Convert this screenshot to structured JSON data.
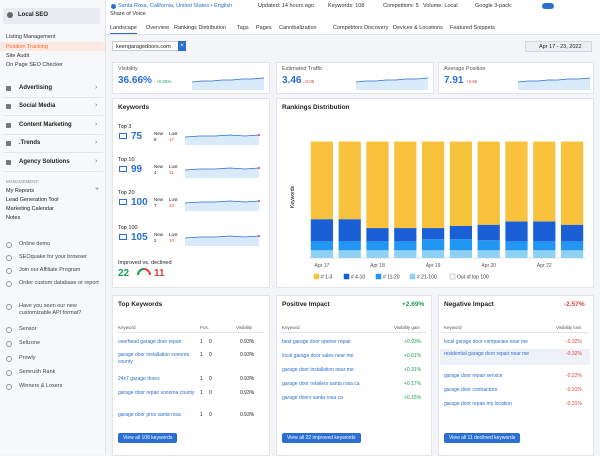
{
  "sidebar": {
    "section": "Local SEO",
    "items": [
      "Listing Management",
      "Position Tracking",
      "Site Audit",
      "On Page SEO Checker"
    ],
    "groups": [
      "Advertising",
      "Social Media",
      "Content Marketing",
      ".Trends",
      "Agency Solutions"
    ],
    "management_heading": "MANAGEMENT",
    "management": [
      "My Reports",
      "Lead Generation Tool",
      "Marketing Calendar",
      "Notes"
    ],
    "links": [
      "Online demo",
      "SEOquake for your browser",
      "Join our Affiliate Program",
      "Order custom database or report",
      "Have you seen our new customizable API format?",
      "Sensor",
      "Sellzone",
      "Prowly",
      "Semrush Rank",
      "Winners & Losers"
    ]
  },
  "topbar": {
    "location": "Santa Rosa, California, United States • English",
    "updated": "Updated: 14 hours ago",
    "keywords": "Keywords: 108",
    "competitors": "Competitors: 5",
    "volume": "Volume: Local",
    "pack": "Google 3-pack:",
    "share": "Share of Voice"
  },
  "tabs": [
    "Landscape",
    "Overview",
    "Rankings Distribution",
    "Tags",
    "Pages",
    "Cannibalization",
    "Competitors Discovery",
    "Devices & Locations",
    "Featured Snippets"
  ],
  "filter": "keengaragedoors.com",
  "date": "Apr 17 - 23, 2022",
  "metrics": [
    {
      "label": "Visibility",
      "value": "36.66%",
      "change": "+0.05%"
    },
    {
      "label": "Estimated Traffic",
      "value": "3.46",
      "change": "-0.08"
    },
    {
      "label": "Average Position",
      "value": "7.91",
      "change": "+2.56"
    }
  ],
  "keywords": {
    "title": "Keywords",
    "new_label": "New",
    "lost_label": "Lost",
    "rows": [
      {
        "label": "Top 3",
        "value": 75,
        "new": 8,
        "lost": 17
      },
      {
        "label": "Top 10",
        "value": 99,
        "new": 4,
        "lost": 11
      },
      {
        "label": "Top 20",
        "value": 100,
        "new": 7,
        "lost": 10
      },
      {
        "label": "Top 100",
        "value": 105,
        "new": 2,
        "lost": 10
      }
    ],
    "improved_label": "Improved vs. declined",
    "improved": 22,
    "declined": 11
  },
  "rankings": {
    "title": "Rankings Distribution",
    "chart_data": {
      "type": "bar",
      "stacked": true,
      "y_label": "Keywords",
      "categories": [
        "Apr 17",
        null,
        "Apr 18",
        null,
        "Apr 19",
        null,
        "Apr 20",
        null,
        "Apr 22",
        null
      ],
      "ylim": [
        0,
        110
      ],
      "series": [
        {
          "name": "# 1-3",
          "color": "#f9c23c",
          "values": [
            70,
            70,
            78,
            78,
            78,
            76,
            75,
            72,
            72,
            75
          ]
        },
        {
          "name": "# 4-10",
          "color": "#1a5fd6",
          "values": [
            20,
            20,
            12,
            12,
            10,
            12,
            14,
            18,
            18,
            15
          ]
        },
        {
          "name": "# 11-20",
          "color": "#2196f3",
          "values": [
            8,
            8,
            8,
            8,
            10,
            10,
            9,
            8,
            8,
            8
          ]
        },
        {
          "name": "# 21-100",
          "color": "#8fd0f5",
          "values": [
            7,
            7,
            7,
            7,
            7,
            7,
            7,
            7,
            7,
            7
          ]
        },
        {
          "name": "Out of top 100",
          "color": "#ffffff",
          "values": [
            0,
            0,
            0,
            0,
            0,
            0,
            0,
            0,
            0,
            0
          ]
        }
      ]
    }
  },
  "tables": [
    {
      "title": "Top Keywords",
      "columns": [
        "Keyword",
        "Pos.",
        "Visibility"
      ],
      "rows": [
        [
          "overhead garage door repair",
          "1",
          "0",
          "0.93%"
        ],
        [
          "garage door installation sonoma county",
          "1",
          "0",
          "0.93%"
        ],
        [
          "24x7 garage doors",
          "1",
          "0",
          "0.93%"
        ],
        [
          "garage door repair sonoma county",
          "1",
          "0",
          "0.93%"
        ],
        [
          "garage door pros santa rosa",
          "1",
          "0",
          "0.93%"
        ]
      ],
      "button": "View all 108 keywords"
    },
    {
      "title": "Positive Impact",
      "total": "+2.69%",
      "columns": [
        "Keyword",
        "Visibility gain"
      ],
      "rows": [
        [
          "best garage door opener repair",
          "+0.93%"
        ],
        [
          "local garage door sales near me",
          "+0.61%"
        ],
        [
          "garage door installation near me",
          "+0.31%"
        ],
        [
          "garage door retailers santa rosa ca",
          "+0.17%"
        ],
        [
          "garage doors santa rosa ca",
          "+0.15%"
        ]
      ],
      "button": "View all 22 improved keywords"
    },
    {
      "title": "Negative Impact",
      "total": "-2.57%",
      "columns": [
        "Keyword",
        "Visibility loss"
      ],
      "rows": [
        [
          "local garage door companies near me",
          "-0.32%"
        ],
        [
          "residential garage door repair near me",
          "-0.32%"
        ],
        [
          "garage door repair service",
          "-0.22%"
        ],
        [
          "garage door contractors",
          "-0.31%"
        ],
        [
          "garage door repair my location",
          "-0.31%"
        ]
      ],
      "button": "View all 11 declined keywords"
    }
  ]
}
